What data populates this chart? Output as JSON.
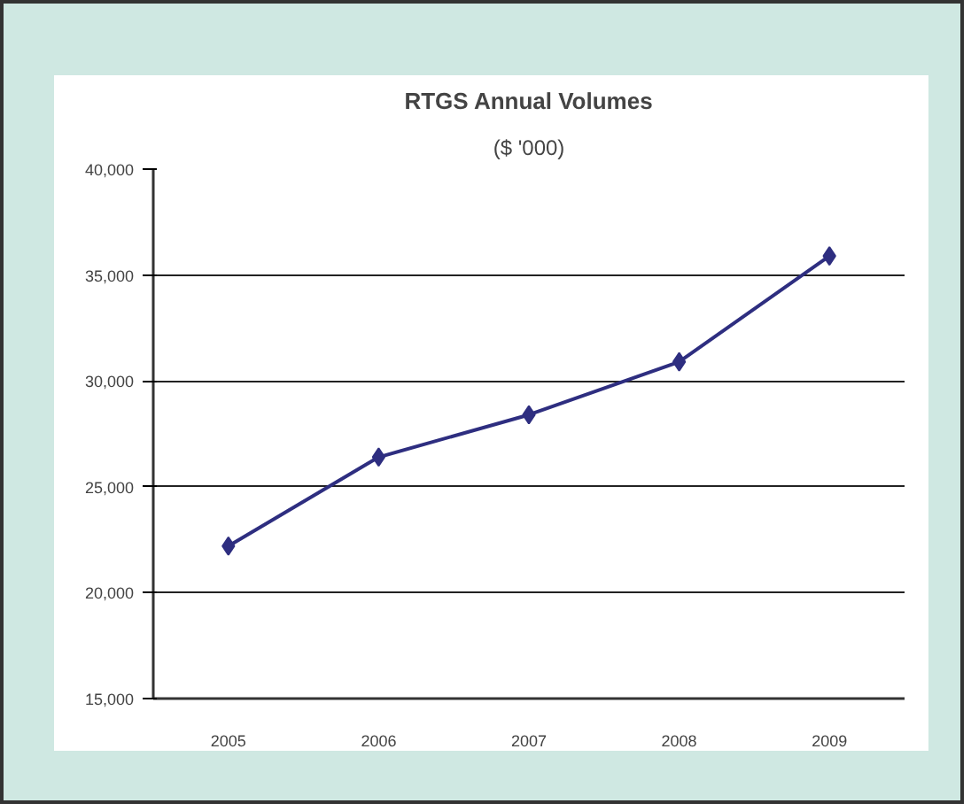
{
  "chart_data": {
    "type": "line",
    "title": "RTGS Annual Volumes",
    "subtitle": "($ '000)",
    "categories": [
      "2005",
      "2006",
      "2007",
      "2008",
      "2009"
    ],
    "series": [
      {
        "color": "#2e2e80",
        "values": [
          22200,
          26400,
          28400,
          30900,
          35900
        ]
      }
    ],
    "ylim": [
      15000,
      40000
    ],
    "yticks": [
      {
        "value": 15000,
        "label": "15,000"
      },
      {
        "value": 20000,
        "label": "20,000"
      },
      {
        "value": 25000,
        "label": "25,000"
      },
      {
        "value": 30000,
        "label": "30,000"
      },
      {
        "value": 35000,
        "label": "35,000"
      },
      {
        "value": 40000,
        "label": "40,000"
      }
    ],
    "grid": "y",
    "marker": "diamond",
    "line_style": "solid"
  }
}
